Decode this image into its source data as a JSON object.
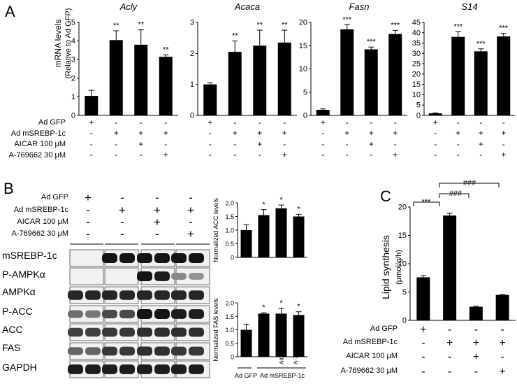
{
  "panels": {
    "a": "A",
    "b": "B",
    "c": "C"
  },
  "panel_a": {
    "ylabel_main": "mRNA levels",
    "ylabel_sub": "(Relative to Ad GFP)",
    "row_labels": [
      "Ad GFP",
      "Ad mSREBP-1c",
      "AICAR 100 μM",
      "A-769662 30 μM"
    ],
    "signs": [
      [
        "+",
        "-",
        "-",
        "-"
      ],
      [
        "-",
        "+",
        "+",
        "+"
      ],
      [
        "-",
        "-",
        "+",
        "-"
      ],
      [
        "-",
        "-",
        "-",
        "+"
      ]
    ]
  },
  "panel_b": {
    "row_labels": [
      "Ad GFP",
      "Ad mSREBP-1c",
      "AICAR 100 μM",
      "A-769662 30 μM"
    ],
    "signs": [
      [
        "+",
        "-",
        "-",
        "-"
      ],
      [
        "-",
        "+",
        "+",
        "+"
      ],
      [
        "-",
        "-",
        "+",
        "-"
      ],
      [
        "-",
        "-",
        "-",
        "+"
      ]
    ],
    "blot_labels": [
      "mSREBP-1c",
      "P-AMPKα",
      "AMPKα",
      "P-ACC",
      "ACC",
      "FAS",
      "GAPDH"
    ],
    "blot_intensity": [
      [
        0,
        0,
        1,
        1,
        1,
        1,
        1,
        1
      ],
      [
        0,
        0,
        0,
        0,
        1,
        0.95,
        0.35,
        0.3
      ],
      [
        0.9,
        0.9,
        0.9,
        0.9,
        0.9,
        0.9,
        0.9,
        0.9
      ],
      [
        0.5,
        0.45,
        0.7,
        0.7,
        1,
        1,
        0.95,
        0.95
      ],
      [
        0.75,
        0.75,
        0.8,
        0.8,
        0.85,
        0.85,
        0.85,
        0.85
      ],
      [
        0.55,
        0.55,
        0.8,
        0.8,
        0.85,
        0.85,
        0.8,
        0.8
      ],
      [
        0.95,
        0.95,
        0.95,
        0.95,
        0.95,
        0.95,
        0.95,
        0.95
      ]
    ],
    "bottom_labels": [
      "Ad GFP",
      "Ad mSREBP-1c",
      "AICAR",
      "A-769662"
    ]
  },
  "panel_c": {
    "ylabel_main": "Lipid synthesis",
    "ylabel_sub": "(μmol/g/h)",
    "row_labels": [
      "Ad GFP",
      "Ad mSREBP-1c",
      "AICAR 100 μM",
      "A-769662 30 μM"
    ],
    "signs": [
      [
        "+",
        "-",
        "-",
        "-"
      ],
      [
        "-",
        "+",
        "+",
        "+"
      ],
      [
        "-",
        "-",
        "+",
        "-"
      ],
      [
        "-",
        "-",
        "-",
        "+"
      ]
    ],
    "brackets": [
      "***",
      "###",
      "###"
    ]
  },
  "chart_data": [
    {
      "type": "bar",
      "title": "Acly",
      "categories": [
        "1",
        "2",
        "3",
        "4"
      ],
      "values": [
        1.05,
        4.05,
        3.8,
        3.15
      ],
      "errors": [
        0.3,
        0.5,
        0.8,
        0.1
      ],
      "sig": [
        "",
        "**",
        "**",
        "**"
      ],
      "ylim": [
        0,
        5
      ],
      "yticks": [
        "0",
        "1",
        "2",
        "3",
        "4",
        "5"
      ]
    },
    {
      "type": "bar",
      "title": "Acaca",
      "categories": [
        "1",
        "2",
        "3",
        "4"
      ],
      "values": [
        1.0,
        2.05,
        2.25,
        2.35
      ],
      "errors": [
        0.05,
        0.35,
        0.5,
        0.4
      ],
      "sig": [
        "",
        "**",
        "**",
        "**"
      ],
      "ylim": [
        0,
        3
      ],
      "yticks": [
        "0",
        "1",
        "2",
        "3"
      ]
    },
    {
      "type": "bar",
      "title": "Fasn",
      "categories": [
        "1",
        "2",
        "3",
        "4"
      ],
      "values": [
        1.2,
        18.5,
        14.2,
        17.5
      ],
      "errors": [
        0.2,
        1.0,
        0.5,
        0.8
      ],
      "sig": [
        "",
        "***",
        "***",
        "***"
      ],
      "ylim": [
        0,
        20
      ],
      "yticks": [
        "0",
        "5",
        "10",
        "15",
        "20"
      ]
    },
    {
      "type": "bar",
      "title": "S14",
      "categories": [
        "1",
        "2",
        "3",
        "4"
      ],
      "values": [
        1.0,
        38,
        31,
        38.2
      ],
      "errors": [
        0.2,
        2.5,
        1.2,
        1.5
      ],
      "sig": [
        "",
        "***",
        "***",
        "***"
      ],
      "ylim": [
        0,
        45
      ],
      "yticks": [
        "0",
        "5",
        "10",
        "15",
        "20",
        "25",
        "30",
        "35",
        "40",
        "45"
      ]
    },
    {
      "type": "bar",
      "ylabel": "Normalized ACC levels",
      "categories": [
        "1",
        "2",
        "3",
        "4"
      ],
      "values": [
        1.0,
        1.55,
        1.8,
        1.5
      ],
      "errors": [
        0.2,
        0.2,
        0.12,
        0.08
      ],
      "sig": [
        "",
        "*",
        "*",
        "*"
      ],
      "ylim": [
        0,
        2.0
      ],
      "yticks": [
        "0",
        "0.5",
        "1.0",
        "1.5",
        "2.0"
      ]
    },
    {
      "type": "bar",
      "ylabel": "Normalized FAS levels",
      "categories": [
        "1",
        "2",
        "3",
        "4"
      ],
      "values": [
        1.0,
        1.6,
        1.6,
        1.55
      ],
      "errors": [
        0.2,
        0.03,
        0.2,
        0.12
      ],
      "sig": [
        "",
        "*",
        "*",
        "*"
      ],
      "ylim": [
        0,
        2.0
      ],
      "yticks": [
        "0",
        "0.5",
        "1.0",
        "1.5",
        "2.0"
      ]
    },
    {
      "type": "bar",
      "ylabel": "Lipid synthesis (μmol/g/h)",
      "categories": [
        "1",
        "2",
        "3",
        "4"
      ],
      "values": [
        7.6,
        18.5,
        2.4,
        4.5
      ],
      "errors": [
        0.3,
        0.4,
        0.1,
        0.05
      ],
      "ylim": [
        0,
        20
      ],
      "yticks": [
        "0",
        "5",
        "10",
        "15",
        "20"
      ]
    }
  ]
}
